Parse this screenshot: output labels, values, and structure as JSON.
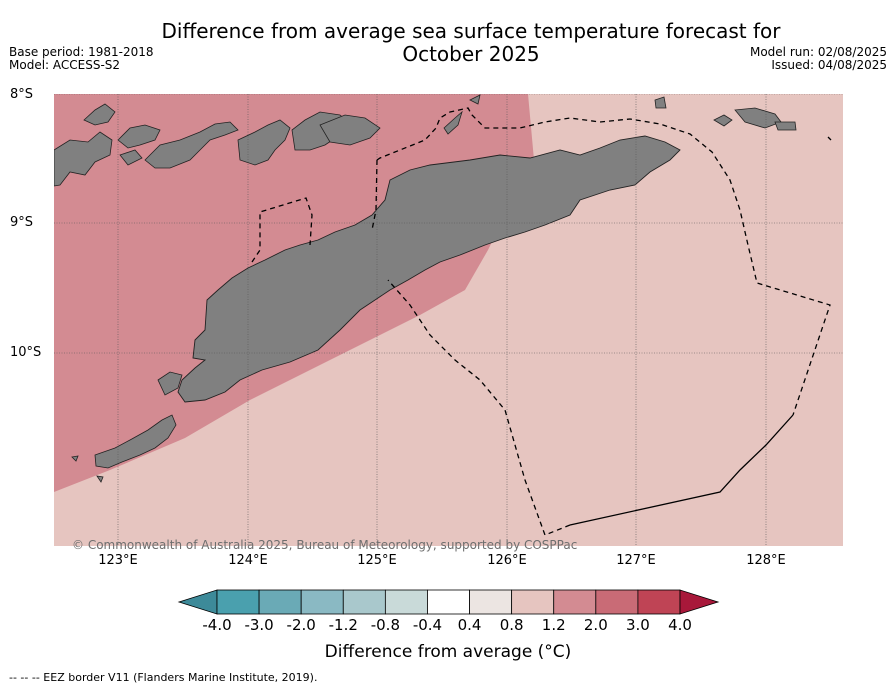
{
  "title": "Difference from average sea surface temperature forecast for",
  "title_line2": "October 2025",
  "meta_left": {
    "base_period": "Base period: 1981-2018",
    "model": "Model: ACCESS-S2"
  },
  "meta_right": {
    "model_run": "Model run: 02/08/2025",
    "issued": "Issued: 04/08/2025"
  },
  "latitudes": [
    "8°S",
    "9°S",
    "10°S"
  ],
  "longitudes": [
    "123°E",
    "124°E",
    "125°E",
    "126°E",
    "127°E",
    "128°E"
  ],
  "copyright": "© Commonwealth of Australia 2025, Bureau of Meteorology, supported by COSPPac",
  "colorbar": {
    "ticks": [
      "-4.0",
      "-3.0",
      "-2.0",
      "-1.2",
      "-0.8",
      "-0.4",
      "0.4",
      "0.8",
      "1.2",
      "2.0",
      "3.0",
      "4.0"
    ],
    "colors": [
      "#3d8a99",
      "#4aa0ae",
      "#6aaab6",
      "#8ab9c3",
      "#a9c8cc",
      "#c9dad9",
      "#ffffff",
      "#ece5e2",
      "#e6c5c0",
      "#d38b92",
      "#c96b76",
      "#bf4455",
      "#a8183a"
    ],
    "label": "Difference from average (°C)"
  },
  "legend_note": "--  --  -- EEZ border V11 (Flanders Marine Institute, 2019).",
  "map_colors": {
    "land": "#808080",
    "warm_pink": "#d38b92",
    "light_pink": "#e6c5c0",
    "grid": "#555555"
  }
}
